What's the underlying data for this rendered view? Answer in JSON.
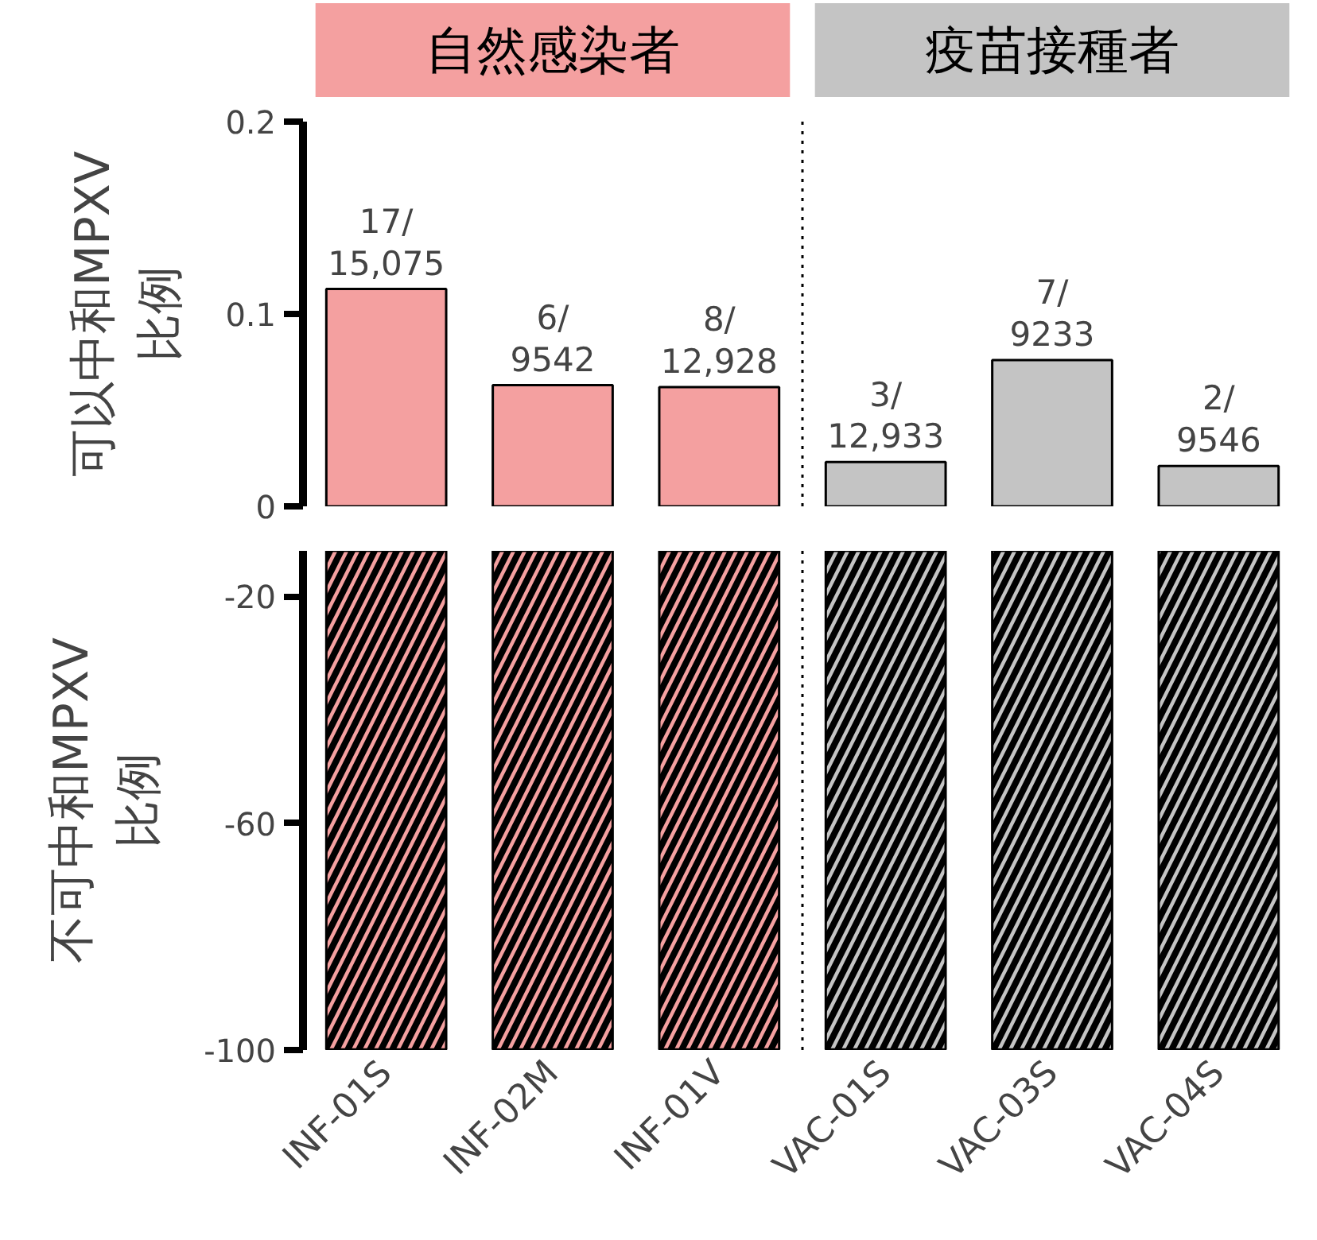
{
  "chart_data": [
    {
      "type": "bar",
      "ylabel": "可以中和MPXV\n比例",
      "categories": [
        null,
        null,
        null,
        null,
        null,
        null
      ],
      "values": [
        0.113,
        0.063,
        0.062,
        0.023,
        0.076,
        0.021
      ],
      "colors": [
        "#f4a0a0",
        "#f4a0a0",
        "#f4a0a0",
        "#c4c4c4",
        "#c4c4c4",
        "#c4c4c4"
      ],
      "value_labels": [
        "17/\n15,075",
        "6/\n9542",
        "8/\n12,928",
        "3/\n12,933",
        "7/\n9233",
        "2/\n9546"
      ],
      "ylim": [
        0,
        0.2
      ],
      "yticks": [
        0,
        0.1,
        0.2
      ],
      "tick_labels": "y",
      "grid": false,
      "annotations": [
        "自然感染者",
        "疫苗接種者"
      ]
    },
    {
      "type": "bar",
      "ylabel": "不可中和MPXV\n比例",
      "categories": [
        "INF-01S",
        "INF-02M",
        "INF-01V",
        "VAC-01S",
        "VAC-03S",
        "VAC-04S"
      ],
      "values": [
        -99.9,
        -99.9,
        -99.9,
        -99.9,
        -99.9,
        -99.9
      ],
      "colors": [
        "#f4a0a0",
        "#f4a0a0",
        "#f4a0a0",
        "#c4c4c4",
        "#c4c4c4",
        "#c4c4c4"
      ],
      "ylim": [
        -100,
        -12
      ],
      "yticks": [
        -20,
        -60,
        -100
      ],
      "grid": false
    }
  ]
}
